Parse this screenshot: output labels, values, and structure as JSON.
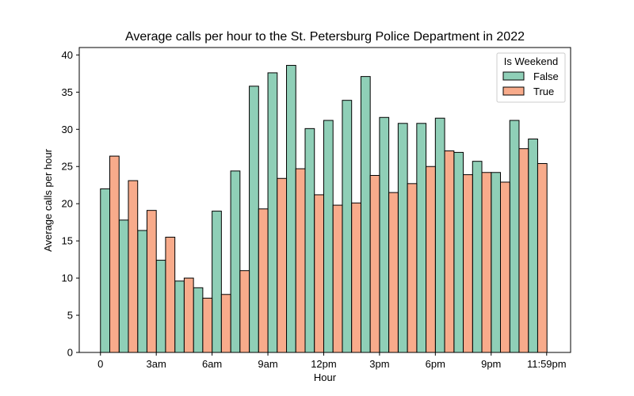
{
  "chart_data": {
    "type": "bar",
    "title": "Average calls per hour to the St. Petersburg Police Department in 2022",
    "xlabel": "Hour",
    "ylabel": "Average calls per hour",
    "ylim": [
      0,
      41
    ],
    "yticks": [
      0,
      5,
      10,
      15,
      20,
      25,
      30,
      35,
      40
    ],
    "xticks": [
      {
        "label": "0",
        "hour": 0
      },
      {
        "label": "3am",
        "hour": 3
      },
      {
        "label": "6am",
        "hour": 6
      },
      {
        "label": "9am",
        "hour": 9
      },
      {
        "label": "12pm",
        "hour": 12
      },
      {
        "label": "3pm",
        "hour": 15
      },
      {
        "label": "6pm",
        "hour": 18
      },
      {
        "label": "9pm",
        "hour": 21
      },
      {
        "label": "11:59pm",
        "hour": 23.9833
      }
    ],
    "x": [
      0,
      1,
      2,
      3,
      4,
      5,
      6,
      7,
      8,
      9,
      10,
      11,
      12,
      13,
      14,
      15,
      16,
      17,
      18,
      19,
      20,
      21,
      22,
      23
    ],
    "legend": {
      "title": "Is Weekend",
      "position": "top-right"
    },
    "series": [
      {
        "name": "False",
        "color": "#8fcfb7",
        "values": [
          22.0,
          17.8,
          16.4,
          12.4,
          9.6,
          8.7,
          19.0,
          24.4,
          35.8,
          37.6,
          38.6,
          30.1,
          31.2,
          33.9,
          37.1,
          31.6,
          30.8,
          30.8,
          31.5,
          26.9,
          25.7,
          24.2,
          31.2,
          28.7
        ]
      },
      {
        "name": "True",
        "color": "#f8ab8b",
        "values": [
          26.4,
          23.1,
          19.1,
          15.5,
          10.0,
          7.3,
          7.8,
          11.0,
          19.3,
          23.4,
          24.7,
          21.2,
          19.8,
          20.1,
          23.8,
          21.5,
          22.7,
          25.0,
          27.1,
          23.9,
          24.2,
          22.9,
          27.4,
          25.4
        ]
      }
    ],
    "grid": false
  }
}
